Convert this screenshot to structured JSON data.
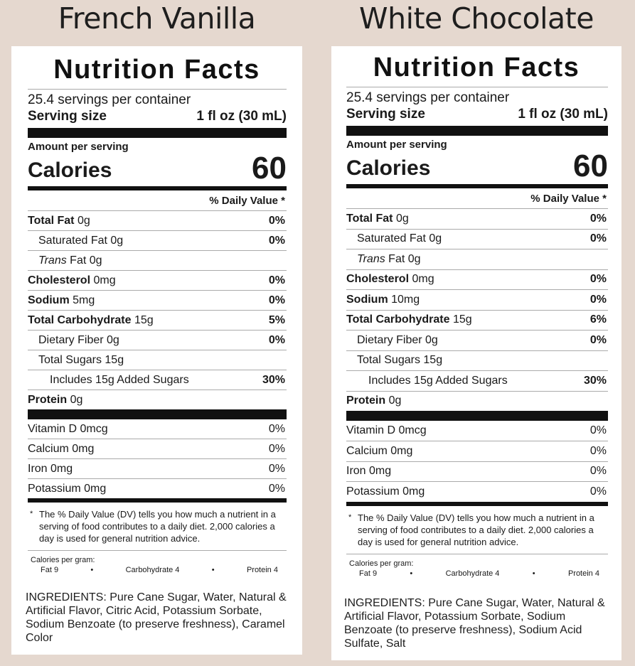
{
  "products": [
    {
      "title": "French Vanilla",
      "label": {
        "heading": "Nutrition Facts",
        "servings_per_container": "25.4 servings per container",
        "serving_size_label": "Serving size",
        "serving_size_value": "1 fl oz (30 mL)",
        "amount_per_serving": "Amount per serving",
        "calories_label": "Calories",
        "calories_value": "60",
        "daily_value_header": "% Daily Value *",
        "nutrients": [
          {
            "name": "Total Fat",
            "amount": "0g",
            "dv": "0%"
          },
          {
            "name": "Saturated Fat",
            "amount": "0g",
            "dv": "0%"
          },
          {
            "name": "Trans",
            "suffix": "Fat 0g",
            "dv": ""
          },
          {
            "name": "Cholesterol",
            "amount": "0mg",
            "dv": "0%"
          },
          {
            "name": "Sodium",
            "amount": "5mg",
            "dv": "0%"
          },
          {
            "name": "Total Carbohydrate",
            "amount": "15g",
            "dv": "5%"
          },
          {
            "name": "Dietary Fiber",
            "amount": "0g",
            "dv": "0%"
          },
          {
            "name": "Total Sugars",
            "amount": "15g",
            "dv": ""
          },
          {
            "name": "Includes 15g Added Sugars",
            "amount": "",
            "dv": "30%"
          },
          {
            "name": "Protein",
            "amount": "0g",
            "dv": ""
          }
        ],
        "vitamins": [
          {
            "name": "Vitamin D 0mcg",
            "dv": "0%"
          },
          {
            "name": "Calcium 0mg",
            "dv": "0%"
          },
          {
            "name": "Iron 0mg",
            "dv": "0%"
          },
          {
            "name": "Potassium 0mg",
            "dv": "0%"
          }
        ],
        "footnote_star": "*",
        "footnote": "The % Daily Value (DV) tells you how much a nutrient in a serving of food contributes to a daily diet. 2,000 calories a day is used for general nutrition advice.",
        "calories_per_gram_label": "Calories per gram:",
        "cpg_fat": "Fat 9",
        "cpg_bullet": "•",
        "cpg_carb": "Carbohydrate 4",
        "cpg_protein": "Protein 4"
      },
      "ingredients": "INGREDIENTS: Pure Cane Sugar, Water, Natural & Artificial Flavor, Citric Acid, Potassium Sorbate, Sodium Benzoate (to preserve freshness), Caramel Color"
    },
    {
      "title": "White Chocolate",
      "label": {
        "heading": "Nutrition Facts",
        "servings_per_container": "25.4 servings per container",
        "serving_size_label": "Serving size",
        "serving_size_value": "1 fl oz (30 mL)",
        "amount_per_serving": "Amount per serving",
        "calories_label": "Calories",
        "calories_value": "60",
        "daily_value_header": "% Daily Value *",
        "nutrients": [
          {
            "name": "Total Fat",
            "amount": "0g",
            "dv": "0%"
          },
          {
            "name": "Saturated Fat",
            "amount": "0g",
            "dv": "0%"
          },
          {
            "name": "Trans",
            "suffix": "Fat 0g",
            "dv": ""
          },
          {
            "name": "Cholesterol",
            "amount": "0mg",
            "dv": "0%"
          },
          {
            "name": "Sodium",
            "amount": "10mg",
            "dv": "0%"
          },
          {
            "name": "Total Carbohydrate",
            "amount": "15g",
            "dv": "6%"
          },
          {
            "name": "Dietary Fiber",
            "amount": "0g",
            "dv": "0%"
          },
          {
            "name": "Total Sugars",
            "amount": "15g",
            "dv": ""
          },
          {
            "name": "Includes 15g Added Sugars",
            "amount": "",
            "dv": "30%"
          },
          {
            "name": "Protein",
            "amount": "0g",
            "dv": ""
          }
        ],
        "vitamins": [
          {
            "name": "Vitamin D 0mcg",
            "dv": "0%"
          },
          {
            "name": "Calcium 0mg",
            "dv": "0%"
          },
          {
            "name": "Iron 0mg",
            "dv": "0%"
          },
          {
            "name": "Potassium 0mg",
            "dv": "0%"
          }
        ],
        "footnote_star": "*",
        "footnote": "The % Daily Value (DV) tells you how much a nutrient in a serving of food contributes to a daily diet. 2,000 calories a day is used for general nutrition advice.",
        "calories_per_gram_label": "Calories per gram:",
        "cpg_fat": "Fat 9",
        "cpg_bullet": "•",
        "cpg_carb": "Carbohydrate 4",
        "cpg_protein": "Protein 4"
      },
      "ingredients": "INGREDIENTS: Pure Cane Sugar, Water, Natural & Artificial Flavor, Potassium Sorbate, Sodium Benzoate (to preserve freshness), Sodium Acid Sulfate, Salt"
    }
  ]
}
